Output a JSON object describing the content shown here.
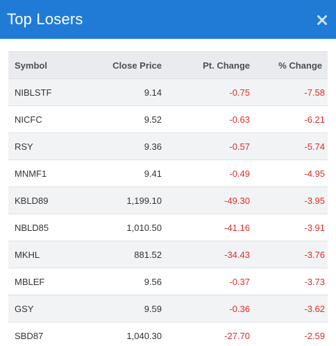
{
  "modal": {
    "title": "Top Losers",
    "close_icon": "close-icon"
  },
  "colors": {
    "header_bg": "#1f7bd6",
    "negative": "#e02b2b",
    "table_header_bg": "#e9ebee",
    "row_alt_bg": "#f2f3f4"
  },
  "table": {
    "headers": [
      "Symbol",
      "Close Price",
      "Pt. Change",
      "% Change"
    ],
    "rows": [
      [
        "NIBLSTF",
        "9.14",
        "-0.75",
        "-7.58"
      ],
      [
        "NICFC",
        "9.52",
        "-0.63",
        "-6.21"
      ],
      [
        "RSY",
        "9.36",
        "-0.57",
        "-5.74"
      ],
      [
        "MNMF1",
        "9.41",
        "-0.49",
        "-4.95"
      ],
      [
        "KBLD89",
        "1,199.10",
        "-49.30",
        "-3.95"
      ],
      [
        "NBLD85",
        "1,010.50",
        "-41.16",
        "-3.91"
      ],
      [
        "MKHL",
        "881.52",
        "-34.43",
        "-3.76"
      ],
      [
        "MBLEF",
        "9.56",
        "-0.37",
        "-3.73"
      ],
      [
        "GSY",
        "9.59",
        "-0.36",
        "-3.62"
      ],
      [
        "SBD87",
        "1,040.30",
        "-27.70",
        "-2.59"
      ]
    ]
  }
}
